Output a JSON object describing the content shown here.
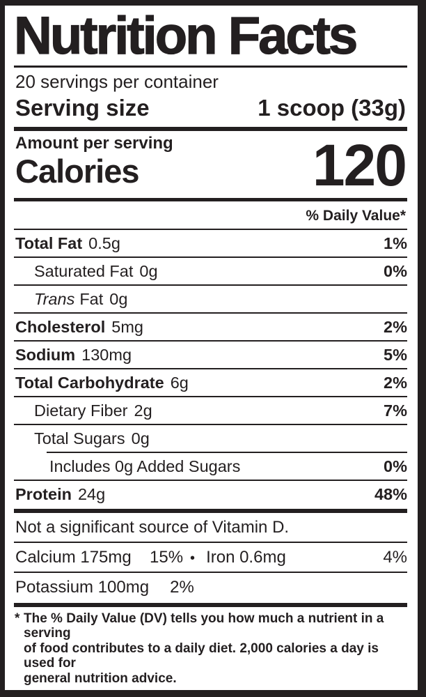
{
  "colors": {
    "ink": "#231f20",
    "paper": "#ffffff"
  },
  "label": {
    "title": "Nutrition Facts",
    "servings_per_container": "20 servings per container",
    "serving_size": {
      "label": "Serving size",
      "value": "1 scoop (33g)"
    },
    "calories": {
      "heading": "Amount per serving",
      "label": "Calories",
      "value": "120"
    },
    "daily_value_header": "% Daily Value*",
    "rows": [
      {
        "name": "Total Fat",
        "amount": "0.5g",
        "dv": "1%"
      },
      {
        "name": "Saturated Fat",
        "amount": "0g",
        "dv": "0%"
      },
      {
        "name_italic": "Trans",
        "name": "Fat",
        "amount": "0g",
        "dv": ""
      },
      {
        "name": "Cholesterol",
        "amount": "5mg",
        "dv": "2%"
      },
      {
        "name": "Sodium",
        "amount": "130mg",
        "dv": "5%"
      },
      {
        "name": "Total Carbohydrate",
        "amount": "6g",
        "dv": "2%"
      },
      {
        "name": "Dietary Fiber",
        "amount": "2g",
        "dv": "7%"
      },
      {
        "name": "Total Sugars",
        "amount": "0g",
        "dv": ""
      },
      {
        "name": "Includes 0g Added Sugars",
        "amount": "",
        "dv": "0%"
      },
      {
        "name": "Protein",
        "amount": "24g",
        "dv": "48%"
      }
    ],
    "not_significant_source": "Not a significant source of Vitamin D.",
    "minerals": {
      "calcium": {
        "name": "Calcium 175mg",
        "dv": "15%"
      },
      "separator": "•",
      "iron": {
        "name": "Iron 0.6mg",
        "dv": "4%"
      },
      "potassium": {
        "name": "Potassium 100mg",
        "dv": "2%"
      }
    },
    "footnote": {
      "marker": "*",
      "lines": [
        "The % Daily Value (DV) tells you how much a nutrient in a serving",
        "of food contributes to a daily diet. 2,000 calories a day is used for",
        "general nutrition advice."
      ]
    }
  }
}
